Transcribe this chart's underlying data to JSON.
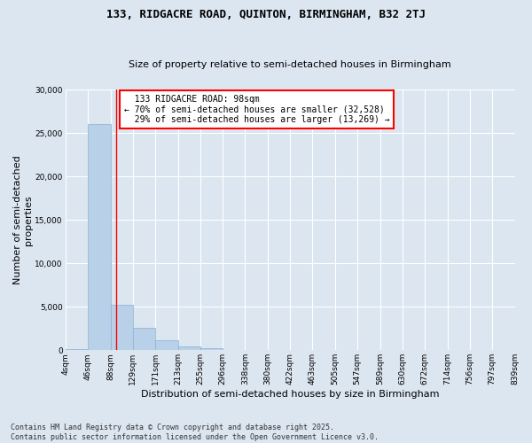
{
  "title": "133, RIDGACRE ROAD, QUINTON, BIRMINGHAM, B32 2TJ",
  "subtitle": "Size of property relative to semi-detached houses in Birmingham",
  "xlabel": "Distribution of semi-detached houses by size in Birmingham",
  "ylabel": "Number of semi-detached\nproperties",
  "background_color": "#dce6f1",
  "bar_color": "#b8d0e8",
  "bar_edge_color": "#8ab0d0",
  "grid_color": "#ffffff",
  "bin_edges": [
    4,
    46,
    88,
    129,
    171,
    213,
    255,
    296,
    338,
    380,
    422,
    463,
    505,
    547,
    589,
    630,
    672,
    714,
    756,
    797,
    839
  ],
  "bar_heights": [
    150,
    26000,
    5200,
    2600,
    1200,
    450,
    200,
    80,
    40,
    20,
    10,
    8,
    4,
    3,
    2,
    1,
    1,
    1,
    0,
    0
  ],
  "property_size": 98,
  "property_label": "133 RIDGACRE ROAD: 98sqm",
  "pct_smaller": 70,
  "pct_larger": 29,
  "count_smaller": 32528,
  "count_larger": 13269,
  "ylim": [
    0,
    30000
  ],
  "yticks": [
    0,
    5000,
    10000,
    15000,
    20000,
    25000,
    30000
  ],
  "footer": "Contains HM Land Registry data © Crown copyright and database right 2025.\nContains public sector information licensed under the Open Government Licence v3.0.",
  "title_fontsize": 9,
  "subtitle_fontsize": 8,
  "axis_label_fontsize": 8,
  "tick_fontsize": 6.5,
  "annotation_fontsize": 7,
  "footer_fontsize": 6
}
